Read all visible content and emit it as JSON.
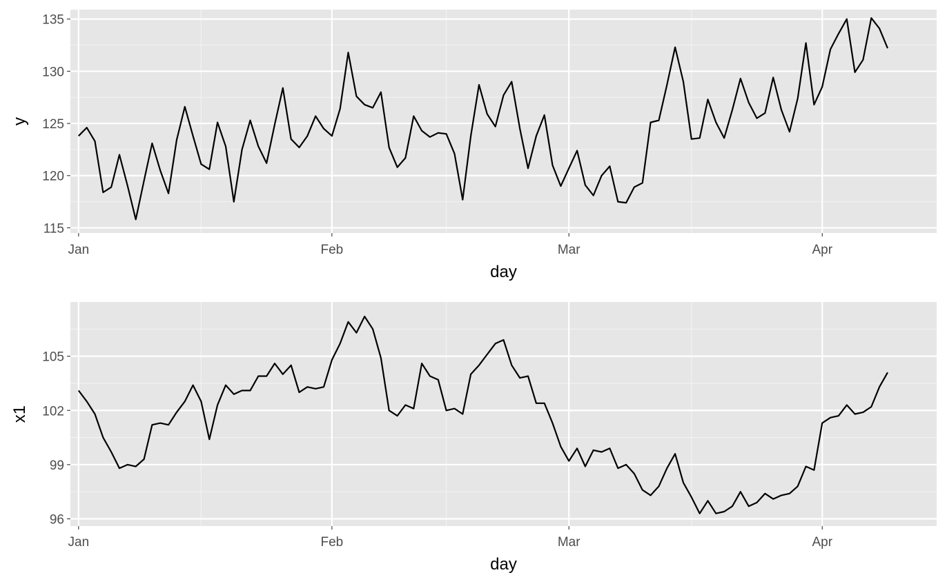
{
  "chart_data": [
    {
      "type": "line",
      "xlabel": "day",
      "ylabel": "y",
      "xlim": [
        "2019-12-31",
        "2020-04-15"
      ],
      "ylim": [
        114.5,
        135.9
      ],
      "x_ticks": [
        {
          "date": "2020-01-01",
          "label": "Jan"
        },
        {
          "date": "2020-02-01",
          "label": "Feb"
        },
        {
          "date": "2020-03-01",
          "label": "Mar"
        },
        {
          "date": "2020-04-01",
          "label": "Apr"
        }
      ],
      "x_minor_ticks": [
        "2020-01-16",
        "2020-02-15",
        "2020-03-16"
      ],
      "y_ticks": [
        115,
        120,
        125,
        130,
        135
      ],
      "y_minor_ticks": [
        117.5,
        122.5,
        127.5,
        132.5
      ],
      "grid": true,
      "series": [
        {
          "x_start": "2020-01-01",
          "x_step_days": 1,
          "values": [
            123.8,
            124.6,
            123.3,
            118.4,
            118.9,
            122.0,
            119.0,
            115.8,
            119.5,
            123.1,
            120.5,
            118.3,
            123.4,
            126.6,
            123.8,
            121.1,
            120.6,
            125.1,
            122.8,
            117.5,
            122.5,
            125.3,
            122.8,
            121.2,
            124.9,
            128.4,
            123.5,
            122.7,
            123.8,
            125.7,
            124.5,
            123.8,
            126.4,
            131.8,
            127.6,
            126.8,
            126.5,
            128.0,
            122.7,
            120.8,
            121.7,
            125.7,
            124.3,
            123.7,
            124.1,
            124.0,
            122.1,
            117.7,
            123.8,
            128.7,
            125.9,
            124.7,
            127.7,
            129.0,
            124.5,
            120.7,
            123.8,
            125.8,
            121.0,
            119.0,
            120.7,
            122.4,
            119.1,
            118.1,
            120.0,
            120.9,
            117.5,
            117.4,
            118.9,
            119.3,
            125.1,
            125.3,
            128.7,
            132.3,
            129.0,
            123.5,
            123.6,
            127.3,
            125.1,
            123.6,
            126.3,
            129.3,
            127.0,
            125.5,
            126.0,
            129.4,
            126.3,
            124.2,
            127.4,
            132.7,
            126.8,
            128.5,
            132.1,
            133.6,
            135.0,
            129.9,
            131.1,
            135.1,
            134.1,
            132.2
          ]
        }
      ]
    },
    {
      "type": "line",
      "xlabel": "day",
      "ylabel": "x1",
      "xlim": [
        "2019-12-31",
        "2020-04-15"
      ],
      "ylim": [
        95.6,
        108.0
      ],
      "x_ticks": [
        {
          "date": "2020-01-01",
          "label": "Jan"
        },
        {
          "date": "2020-02-01",
          "label": "Feb"
        },
        {
          "date": "2020-03-01",
          "label": "Mar"
        },
        {
          "date": "2020-04-01",
          "label": "Apr"
        }
      ],
      "x_minor_ticks": [
        "2020-01-16",
        "2020-02-15",
        "2020-03-16"
      ],
      "y_ticks": [
        96,
        99,
        102,
        105
      ],
      "y_minor_ticks": [
        97.5,
        100.5,
        103.5,
        106.5
      ],
      "grid": true,
      "series": [
        {
          "x_start": "2020-01-01",
          "x_step_days": 1,
          "values": [
            103.1,
            102.5,
            101.8,
            100.5,
            99.7,
            98.8,
            99.0,
            98.9,
            99.3,
            101.2,
            101.3,
            101.2,
            101.9,
            102.5,
            103.4,
            102.5,
            100.4,
            102.3,
            103.4,
            102.9,
            103.1,
            103.1,
            103.9,
            103.9,
            104.6,
            104.0,
            104.5,
            103.0,
            103.3,
            103.2,
            103.3,
            104.8,
            105.7,
            106.9,
            106.3,
            107.2,
            106.5,
            104.9,
            102.0,
            101.7,
            102.3,
            102.1,
            104.6,
            103.9,
            103.7,
            102.0,
            102.1,
            101.8,
            104.0,
            104.5,
            105.1,
            105.7,
            105.9,
            104.5,
            103.8,
            103.9,
            102.4,
            102.4,
            101.3,
            100.0,
            99.2,
            99.9,
            98.9,
            99.8,
            99.7,
            99.9,
            98.8,
            99.0,
            98.5,
            97.6,
            97.3,
            97.8,
            98.8,
            99.6,
            98.0,
            97.2,
            96.3,
            97.0,
            96.3,
            96.4,
            96.7,
            97.5,
            96.7,
            96.9,
            97.4,
            97.1,
            97.3,
            97.4,
            97.8,
            98.9,
            98.7,
            101.3,
            101.6,
            101.7,
            102.3,
            101.8,
            101.9,
            102.2,
            103.3,
            104.1
          ]
        }
      ]
    }
  ]
}
